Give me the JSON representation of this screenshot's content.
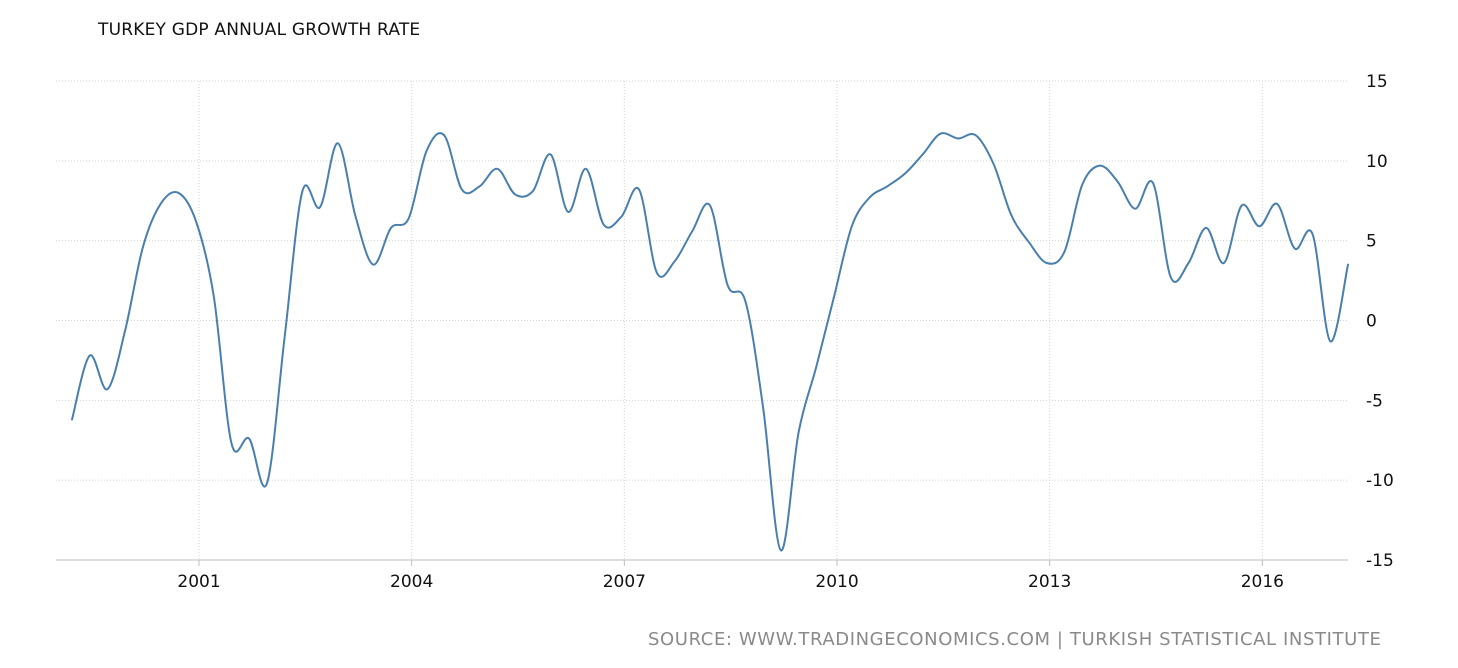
{
  "chart_data": {
    "type": "line",
    "title": "TURKEY GDP ANNUAL GROWTH RATE",
    "xlabel": "",
    "ylabel": "",
    "source": "SOURCE: WWW.TRADINGECONOMICS.COM | TURKISH STATISTICAL INSTITUTE",
    "ylim": [
      -15,
      15
    ],
    "xlim": [
      "1999-03",
      "2017-03"
    ],
    "yticks": [
      "15",
      "10",
      "5",
      "0",
      "-5",
      "-10",
      "-15"
    ],
    "xticks": [
      "2001",
      "2004",
      "2007",
      "2010",
      "2013",
      "2016"
    ],
    "grid": true,
    "y_axis_position": "right",
    "line_color": "#4a7fad",
    "series": [
      {
        "values": [
          {
            "x": "1999-03",
            "y": -6.2
          },
          {
            "x": "1999-06",
            "y": -2.2
          },
          {
            "x": "1999-09",
            "y": -4.3
          },
          {
            "x": "1999-12",
            "y": -0.6
          },
          {
            "x": "2000-03",
            "y": 4.6
          },
          {
            "x": "2000-06",
            "y": 7.3
          },
          {
            "x": "2000-09",
            "y": 8.0
          },
          {
            "x": "2000-12",
            "y": 6.2
          },
          {
            "x": "2001-03",
            "y": 1.5
          },
          {
            "x": "2001-06",
            "y": -7.7
          },
          {
            "x": "2001-09",
            "y": -7.4
          },
          {
            "x": "2001-12",
            "y": -10.2
          },
          {
            "x": "2002-03",
            "y": -1.0
          },
          {
            "x": "2002-06",
            "y": 8.1
          },
          {
            "x": "2002-09",
            "y": 7.1
          },
          {
            "x": "2002-12",
            "y": 11.1
          },
          {
            "x": "2003-03",
            "y": 6.5
          },
          {
            "x": "2003-06",
            "y": 3.5
          },
          {
            "x": "2003-09",
            "y": 5.8
          },
          {
            "x": "2003-12",
            "y": 6.4
          },
          {
            "x": "2004-03",
            "y": 10.6
          },
          {
            "x": "2004-06",
            "y": 11.6
          },
          {
            "x": "2004-09",
            "y": 8.2
          },
          {
            "x": "2004-12",
            "y": 8.4
          },
          {
            "x": "2005-03",
            "y": 9.5
          },
          {
            "x": "2005-06",
            "y": 7.9
          },
          {
            "x": "2005-09",
            "y": 8.1
          },
          {
            "x": "2005-12",
            "y": 10.4
          },
          {
            "x": "2006-03",
            "y": 6.8
          },
          {
            "x": "2006-06",
            "y": 9.5
          },
          {
            "x": "2006-09",
            "y": 6.0
          },
          {
            "x": "2006-12",
            "y": 6.5
          },
          {
            "x": "2007-03",
            "y": 8.2
          },
          {
            "x": "2007-06",
            "y": 3.0
          },
          {
            "x": "2007-09",
            "y": 3.7
          },
          {
            "x": "2007-12",
            "y": 5.6
          },
          {
            "x": "2008-03",
            "y": 7.2
          },
          {
            "x": "2008-06",
            "y": 2.2
          },
          {
            "x": "2008-09",
            "y": 1.2
          },
          {
            "x": "2008-12",
            "y": -5.5
          },
          {
            "x": "2009-03",
            "y": -14.4
          },
          {
            "x": "2009-06",
            "y": -7.0
          },
          {
            "x": "2009-09",
            "y": -2.9
          },
          {
            "x": "2009-12",
            "y": 1.5
          },
          {
            "x": "2010-03",
            "y": 5.9
          },
          {
            "x": "2010-06",
            "y": 7.7
          },
          {
            "x": "2010-09",
            "y": 8.4
          },
          {
            "x": "2010-12",
            "y": 9.2
          },
          {
            "x": "2011-03",
            "y": 10.4
          },
          {
            "x": "2011-06",
            "y": 11.7
          },
          {
            "x": "2011-09",
            "y": 11.4
          },
          {
            "x": "2011-12",
            "y": 11.6
          },
          {
            "x": "2012-03",
            "y": 9.8
          },
          {
            "x": "2012-06",
            "y": 6.6
          },
          {
            "x": "2012-09",
            "y": 4.9
          },
          {
            "x": "2012-12",
            "y": 3.6
          },
          {
            "x": "2013-03",
            "y": 4.3
          },
          {
            "x": "2013-06",
            "y": 8.5
          },
          {
            "x": "2013-09",
            "y": 9.7
          },
          {
            "x": "2013-12",
            "y": 8.7
          },
          {
            "x": "2014-03",
            "y": 7.0
          },
          {
            "x": "2014-06",
            "y": 8.6
          },
          {
            "x": "2014-09",
            "y": 2.7
          },
          {
            "x": "2014-12",
            "y": 3.6
          },
          {
            "x": "2015-03",
            "y": 5.8
          },
          {
            "x": "2015-06",
            "y": 3.6
          },
          {
            "x": "2015-09",
            "y": 7.2
          },
          {
            "x": "2015-12",
            "y": 5.9
          },
          {
            "x": "2016-03",
            "y": 7.3
          },
          {
            "x": "2016-06",
            "y": 4.5
          },
          {
            "x": "2016-09",
            "y": 5.4
          },
          {
            "x": "2016-12",
            "y": -1.3
          },
          {
            "x": "2017-03",
            "y": 3.5
          }
        ]
      }
    ]
  }
}
